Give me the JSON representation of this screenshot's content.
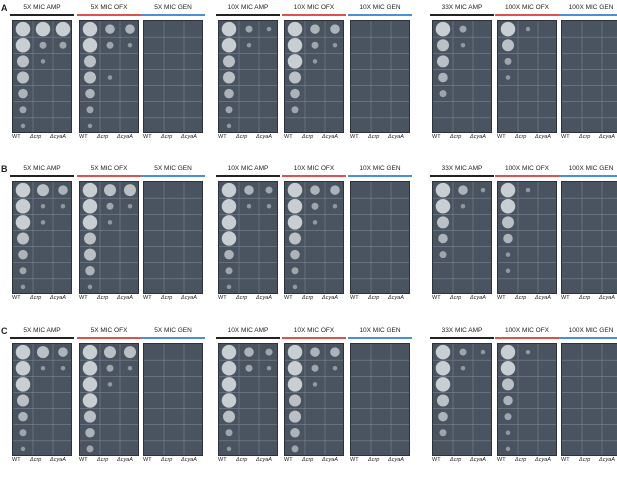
{
  "rows": [
    {
      "letter": "A",
      "plates": [
        {
          "label": "5X MIC AMP",
          "line": "black",
          "spots": [
            [
              5,
              5,
              5
            ],
            [
              5,
              2,
              2
            ],
            [
              4,
              1,
              0
            ],
            [
              4,
              0,
              0
            ],
            [
              3,
              0,
              0
            ],
            [
              2,
              0,
              0
            ],
            [
              1,
              0,
              0
            ]
          ]
        },
        {
          "label": "5X MIC OFX",
          "line": "red",
          "spots": [
            [
              5,
              3,
              3
            ],
            [
              5,
              2,
              1
            ],
            [
              4,
              0,
              0
            ],
            [
              4,
              1,
              0
            ],
            [
              3,
              0,
              0
            ],
            [
              2,
              0,
              0
            ],
            [
              1,
              0,
              0
            ]
          ]
        },
        {
          "label": "5X MIC GEN",
          "line": "blue",
          "spots": []
        },
        {
          "label": "10X MIC AMP",
          "line": "black",
          "spots": [
            [
              5,
              2,
              1
            ],
            [
              5,
              1,
              0
            ],
            [
              4,
              0,
              0
            ],
            [
              4,
              0,
              0
            ],
            [
              3,
              0,
              0
            ],
            [
              2,
              0,
              0
            ],
            [
              1,
              0,
              0
            ]
          ]
        },
        {
          "label": "10X MIC OFX",
          "line": "red",
          "spots": [
            [
              5,
              3,
              3
            ],
            [
              5,
              2,
              1
            ],
            [
              5,
              1,
              0
            ],
            [
              4,
              0,
              0
            ],
            [
              3,
              0,
              0
            ],
            [
              2,
              0,
              0
            ],
            [
              0,
              0,
              0
            ]
          ]
        },
        {
          "label": "10X MIC GEN",
          "line": "blue",
          "spots": []
        },
        {
          "label": "33X MIC AMP",
          "line": "black",
          "spots": [
            [
              5,
              2,
              0
            ],
            [
              4,
              1,
              0
            ],
            [
              4,
              0,
              0
            ],
            [
              3,
              0,
              0
            ],
            [
              2,
              0,
              0
            ],
            [
              0,
              0,
              0
            ],
            [
              0,
              0,
              0
            ]
          ]
        },
        {
          "label": "100X MIC OFX",
          "line": "red",
          "spots": [
            [
              5,
              1,
              0
            ],
            [
              4,
              0,
              0
            ],
            [
              2,
              0,
              0
            ],
            [
              1,
              0,
              0
            ],
            [
              0,
              0,
              0
            ],
            [
              0,
              0,
              0
            ],
            [
              0,
              0,
              0
            ]
          ]
        },
        {
          "label": "100X MIC GEN",
          "line": "blue",
          "spots": []
        }
      ]
    },
    {
      "letter": "B",
      "plates": [
        {
          "label": "5X MIC AMP",
          "line": "black",
          "spots": [
            [
              5,
              4,
              3
            ],
            [
              5,
              1,
              1
            ],
            [
              5,
              1,
              0
            ],
            [
              4,
              0,
              0
            ],
            [
              3,
              0,
              0
            ],
            [
              2,
              0,
              0
            ],
            [
              1,
              0,
              0
            ]
          ]
        },
        {
          "label": "5X MIC OFX",
          "line": "red",
          "spots": [
            [
              5,
              4,
              4
            ],
            [
              5,
              2,
              1
            ],
            [
              5,
              1,
              0
            ],
            [
              4,
              0,
              0
            ],
            [
              4,
              0,
              0
            ],
            [
              3,
              0,
              0
            ],
            [
              1,
              0,
              0
            ]
          ]
        },
        {
          "label": "5X MIC GEN",
          "line": "blue",
          "spots": []
        },
        {
          "label": "10X MIC AMP",
          "line": "black",
          "spots": [
            [
              5,
              3,
              2
            ],
            [
              5,
              1,
              1
            ],
            [
              5,
              0,
              0
            ],
            [
              5,
              0,
              0
            ],
            [
              3,
              0,
              0
            ],
            [
              2,
              0,
              0
            ],
            [
              1,
              0,
              0
            ]
          ]
        },
        {
          "label": "10X MIC OFX",
          "line": "red",
          "spots": [
            [
              5,
              3,
              3
            ],
            [
              5,
              2,
              1
            ],
            [
              5,
              1,
              0
            ],
            [
              4,
              0,
              0
            ],
            [
              3,
              0,
              0
            ],
            [
              2,
              0,
              0
            ],
            [
              1,
              0,
              0
            ]
          ]
        },
        {
          "label": "10X MIC GEN",
          "line": "blue",
          "spots": []
        },
        {
          "label": "33X MIC AMP",
          "line": "black",
          "spots": [
            [
              5,
              3,
              1
            ],
            [
              5,
              1,
              0
            ],
            [
              4,
              0,
              0
            ],
            [
              3,
              0,
              0
            ],
            [
              2,
              0,
              0
            ],
            [
              0,
              0,
              0
            ],
            [
              0,
              0,
              0
            ]
          ]
        },
        {
          "label": "100X MIC OFX",
          "line": "red",
          "spots": [
            [
              5,
              1,
              0
            ],
            [
              5,
              0,
              0
            ],
            [
              4,
              0,
              0
            ],
            [
              3,
              0,
              0
            ],
            [
              1,
              0,
              0
            ],
            [
              1,
              0,
              0
            ],
            [
              0,
              0,
              0
            ]
          ]
        },
        {
          "label": "100X MIC GEN",
          "line": "blue",
          "spots": []
        }
      ]
    },
    {
      "letter": "C",
      "plates": [
        {
          "label": "5X MIC AMP",
          "line": "black",
          "spots": [
            [
              5,
              4,
              3
            ],
            [
              5,
              1,
              1
            ],
            [
              5,
              0,
              0
            ],
            [
              4,
              0,
              0
            ],
            [
              3,
              0,
              0
            ],
            [
              2,
              0,
              0
            ],
            [
              1,
              0,
              0
            ]
          ]
        },
        {
          "label": "5X MIC OFX",
          "line": "red",
          "spots": [
            [
              5,
              4,
              4
            ],
            [
              5,
              2,
              1
            ],
            [
              5,
              1,
              0
            ],
            [
              5,
              0,
              0
            ],
            [
              4,
              0,
              0
            ],
            [
              3,
              0,
              0
            ],
            [
              2,
              0,
              0
            ]
          ]
        },
        {
          "label": "5X MIC GEN",
          "line": "blue",
          "spots": []
        },
        {
          "label": "10X MIC AMP",
          "line": "black",
          "spots": [
            [
              5,
              3,
              2
            ],
            [
              5,
              2,
              1
            ],
            [
              5,
              0,
              0
            ],
            [
              5,
              0,
              0
            ],
            [
              4,
              0,
              0
            ],
            [
              2,
              0,
              0
            ],
            [
              1,
              0,
              0
            ]
          ]
        },
        {
          "label": "10X MIC OFX",
          "line": "red",
          "spots": [
            [
              5,
              3,
              3
            ],
            [
              5,
              2,
              1
            ],
            [
              5,
              1,
              0
            ],
            [
              4,
              0,
              0
            ],
            [
              4,
              0,
              0
            ],
            [
              3,
              0,
              0
            ],
            [
              2,
              0,
              0
            ]
          ]
        },
        {
          "label": "10X MIC GEN",
          "line": "blue",
          "spots": []
        },
        {
          "label": "33X MIC AMP",
          "line": "black",
          "spots": [
            [
              5,
              2,
              1
            ],
            [
              5,
              1,
              0
            ],
            [
              5,
              0,
              0
            ],
            [
              4,
              0,
              0
            ],
            [
              3,
              0,
              0
            ],
            [
              2,
              0,
              0
            ],
            [
              0,
              0,
              0
            ]
          ]
        },
        {
          "label": "100X MIC OFX",
          "line": "red",
          "spots": [
            [
              5,
              1,
              0
            ],
            [
              5,
              0,
              0
            ],
            [
              4,
              0,
              0
            ],
            [
              3,
              0,
              0
            ],
            [
              2,
              0,
              0
            ],
            [
              1,
              0,
              0
            ],
            [
              1,
              0,
              0
            ]
          ]
        },
        {
          "label": "100X MIC GEN",
          "line": "blue",
          "spots": []
        }
      ]
    }
  ],
  "strains": [
    "WT",
    "Δcrp",
    "ΔcyaA"
  ],
  "line_colors": {
    "black": "#222222",
    "red": "#d9534f",
    "blue": "#4a90d9"
  }
}
